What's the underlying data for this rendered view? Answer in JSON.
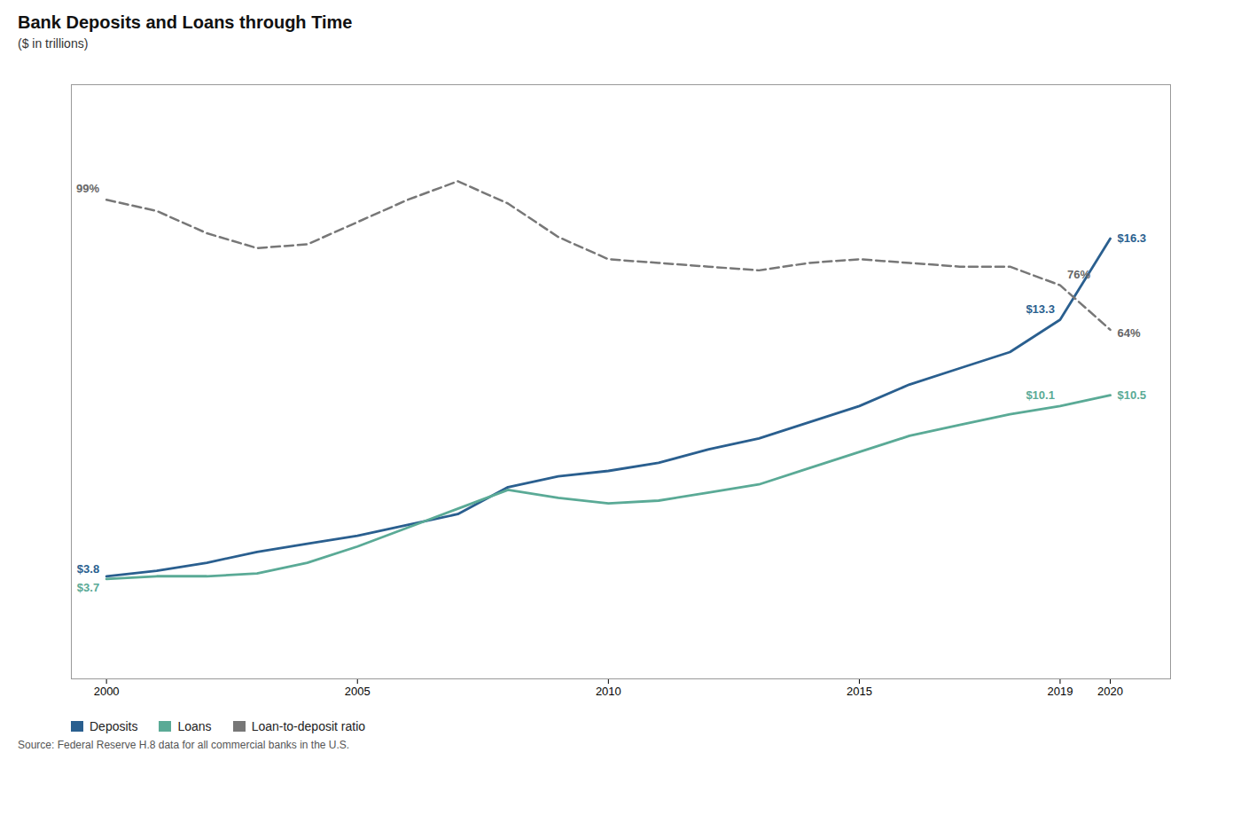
{
  "chart_data": {
    "type": "line",
    "title": "Bank Deposits and Loans through Time",
    "subtitle": "($ in trillions)",
    "source": "Source: Federal Reserve H.8 data for all commercial banks in the U.S.",
    "x": [
      2000,
      2001,
      2002,
      2003,
      2004,
      2005,
      2006,
      2007,
      2008,
      2009,
      2010,
      2011,
      2012,
      2013,
      2014,
      2015,
      2016,
      2017,
      2018,
      2019,
      2020
    ],
    "series": [
      {
        "name": "Deposits",
        "color": "#2a5f8f",
        "values": [
          3.8,
          4.0,
          4.3,
          4.7,
          5.0,
          5.3,
          5.7,
          6.1,
          7.1,
          7.5,
          7.7,
          8.0,
          8.5,
          8.9,
          9.5,
          10.1,
          10.9,
          11.5,
          12.1,
          13.3,
          16.3
        ]
      },
      {
        "name": "Loans",
        "color": "#5aaa96",
        "values": [
          3.7,
          3.8,
          3.8,
          3.9,
          4.3,
          4.9,
          5.6,
          6.3,
          7.0,
          6.7,
          6.5,
          6.6,
          6.9,
          7.2,
          7.8,
          8.4,
          9.0,
          9.4,
          9.8,
          10.1,
          10.5
        ]
      },
      {
        "name": "Loan-to-deposit ratio",
        "color": "#777777",
        "axis": "y2",
        "line_style": "dashed",
        "values": [
          99,
          96,
          90,
          86,
          87,
          93,
          99,
          104,
          98,
          89,
          83,
          82,
          81,
          80,
          82,
          83,
          82,
          81,
          81,
          76,
          64
        ]
      }
    ],
    "xlim": [
      1999.3,
      2021.2
    ],
    "xticks": [
      2000,
      2005,
      2010,
      2015,
      2019,
      2020
    ],
    "ylim": [
      0,
      22
    ],
    "y2lim": [
      -30,
      130
    ],
    "tick_labels": "x",
    "grid": false,
    "legend": "bottom left",
    "annotations": [
      {
        "text": "$3.8",
        "x": 2000,
        "y": 3.8,
        "series": "Deposits"
      },
      {
        "text": "$3.7",
        "x": 2000,
        "y": 3.7,
        "series": "Loans"
      },
      {
        "text": "99%",
        "x": 2000,
        "y": 99,
        "series": "Loan-to-deposit ratio"
      },
      {
        "text": "$13.3",
        "x": 2019,
        "y": 13.3,
        "series": "Deposits"
      },
      {
        "text": "$16.3",
        "x": 2020,
        "y": 16.3,
        "series": "Deposits"
      },
      {
        "text": "$10.1",
        "x": 2019,
        "y": 10.1,
        "series": "Loans"
      },
      {
        "text": "$10.5",
        "x": 2020,
        "y": 10.5,
        "series": "Loans"
      },
      {
        "text": "76%",
        "x": 2019,
        "y": 76,
        "series": "Loan-to-deposit ratio"
      },
      {
        "text": "64%",
        "x": 2020,
        "y": 64,
        "series": "Loan-to-deposit ratio"
      }
    ]
  }
}
